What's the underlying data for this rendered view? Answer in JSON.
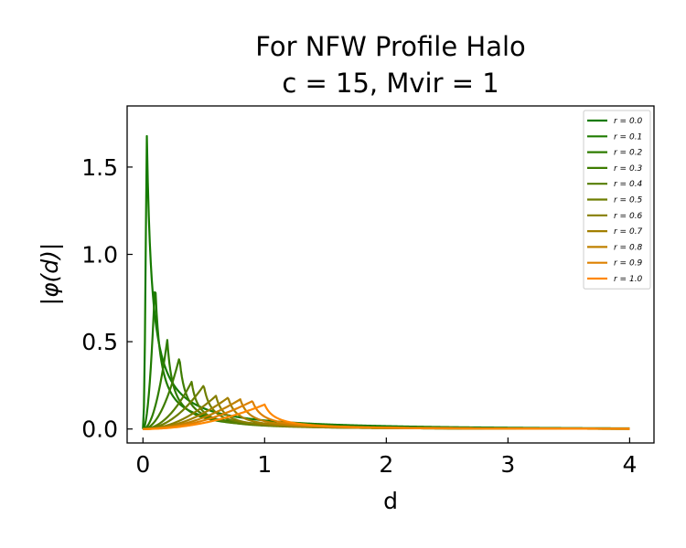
{
  "chart_data": {
    "type": "line",
    "title": [
      "For NFW Profile Halo",
      "c = 15, Mvir = 1"
    ],
    "xlabel": "d",
    "ylabel": "|φ(d)|",
    "xlim": [
      -0.13,
      4.2
    ],
    "ylim": [
      -0.08,
      1.85
    ],
    "xticks": [
      0,
      1,
      2,
      3,
      4
    ],
    "xtick_labels": [
      "0",
      "1",
      "2",
      "3",
      "4"
    ],
    "yticks": [
      0.0,
      0.5,
      1.0,
      1.5
    ],
    "ytick_labels": [
      "0.0",
      "0.5",
      "1.0",
      "1.5"
    ],
    "grid": false,
    "legend_position": "top-right",
    "series": [
      {
        "name": "r = 0.0",
        "color": "#157a00",
        "peak_d": 0.03,
        "peak": 1.76
      },
      {
        "name": "r = 0.1",
        "color": "#1f7b00",
        "peak_d": 0.1,
        "peak": 0.85
      },
      {
        "name": "r = 0.2",
        "color": "#2e7c00",
        "peak_d": 0.2,
        "peak": 0.51
      },
      {
        "name": "r = 0.3",
        "color": "#3d7c00",
        "peak_d": 0.3,
        "peak": 0.41
      },
      {
        "name": "r = 0.4",
        "color": "#557d00",
        "peak_d": 0.4,
        "peak": 0.27
      },
      {
        "name": "r = 0.5",
        "color": "#6e7e00",
        "peak_d": 0.5,
        "peak": 0.25
      },
      {
        "name": "r = 0.6",
        "color": "#867e00",
        "peak_d": 0.6,
        "peak": 0.19
      },
      {
        "name": "r = 0.7",
        "color": "#a27f00",
        "peak_d": 0.7,
        "peak": 0.18
      },
      {
        "name": "r = 0.8",
        "color": "#bf8000",
        "peak_d": 0.8,
        "peak": 0.17
      },
      {
        "name": "r = 0.9",
        "color": "#dd8000",
        "peak_d": 0.9,
        "peak": 0.16
      },
      {
        "name": "r = 1.0",
        "color": "#ff8800",
        "peak_d": 1.0,
        "peak": 0.14
      }
    ],
    "x_end": 4.0
  }
}
